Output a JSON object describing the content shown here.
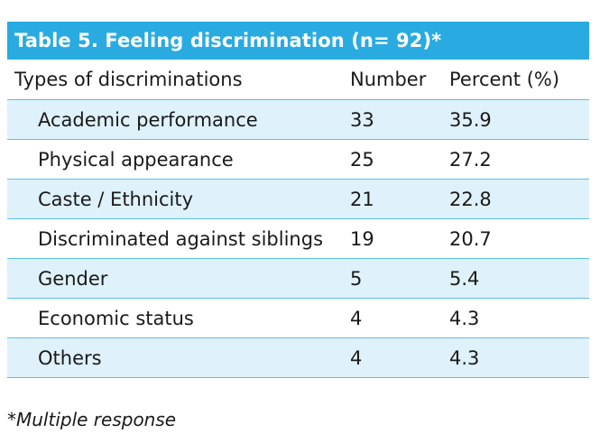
{
  "table": {
    "title": "Table 5. Feeling discrimination (n= 92)*",
    "header": {
      "type": "Types of discriminations",
      "number": "Number",
      "percent": "Percent (%)"
    },
    "rows": [
      {
        "type": "Academic performance",
        "number": "33",
        "percent": "35.9"
      },
      {
        "type": "Physical appearance",
        "number": "25",
        "percent": "27.2"
      },
      {
        "type": "Caste / Ethnicity",
        "number": "21",
        "percent": "22.8"
      },
      {
        "type": "Discriminated against siblings",
        "number": "19",
        "percent": "20.7"
      },
      {
        "type": "Gender",
        "number": "5",
        "percent": "5.4"
      },
      {
        "type": "Economic status",
        "number": "4",
        "percent": "4.3"
      },
      {
        "type": "Others",
        "number": "4",
        "percent": "4.3"
      }
    ]
  },
  "footnote": "*Multiple response",
  "colors": {
    "title_bar": "#29abe2",
    "row_shade": "#dff1fa",
    "row_border": "#5bc0eb"
  }
}
